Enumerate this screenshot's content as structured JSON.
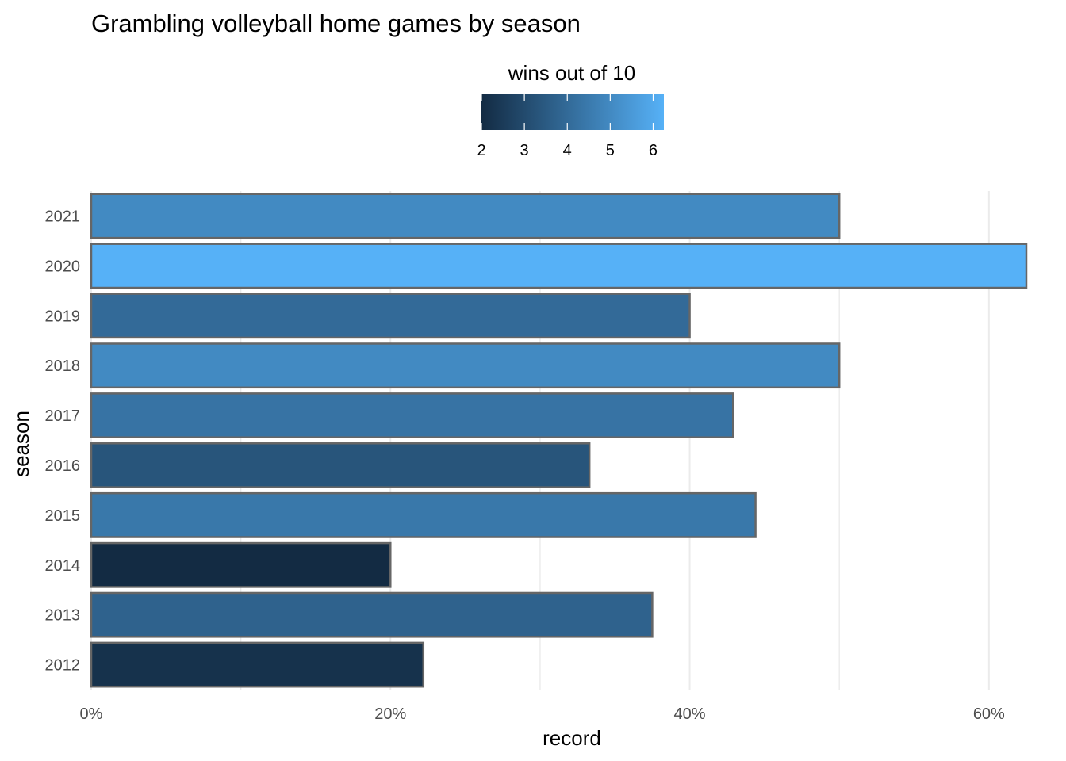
{
  "chart_data": {
    "type": "bar",
    "orientation": "horizontal",
    "title": "Grambling volleyball home games by season",
    "xlabel": "record",
    "ylabel": "season",
    "x_unit": "percent",
    "xlim": [
      0,
      0.625
    ],
    "x_ticks": [
      0,
      0.2,
      0.4,
      0.6
    ],
    "x_tick_labels": [
      "0%",
      "20%",
      "40%",
      "60%"
    ],
    "grid": true,
    "legend": {
      "title": "wins out of 10",
      "placement": "top",
      "type": "color-gradient",
      "range": [
        2,
        6.25
      ],
      "ticks": [
        2,
        3,
        4,
        5,
        6
      ],
      "tick_labels": [
        "2",
        "3",
        "4",
        "5",
        "6"
      ],
      "low_color": "#132B43",
      "high_color": "#56B1F7"
    },
    "categories": [
      "2012",
      "2013",
      "2014",
      "2015",
      "2016",
      "2017",
      "2018",
      "2019",
      "2020",
      "2021"
    ],
    "values": [
      0.222,
      0.375,
      0.2,
      0.444,
      0.333,
      0.429,
      0.5,
      0.4,
      0.625,
      0.5
    ],
    "fill_values": [
      2.22,
      3.75,
      2.0,
      4.44,
      3.33,
      4.29,
      5.0,
      4.0,
      6.25,
      5.0
    ],
    "bar_outline_color": "#666666"
  }
}
